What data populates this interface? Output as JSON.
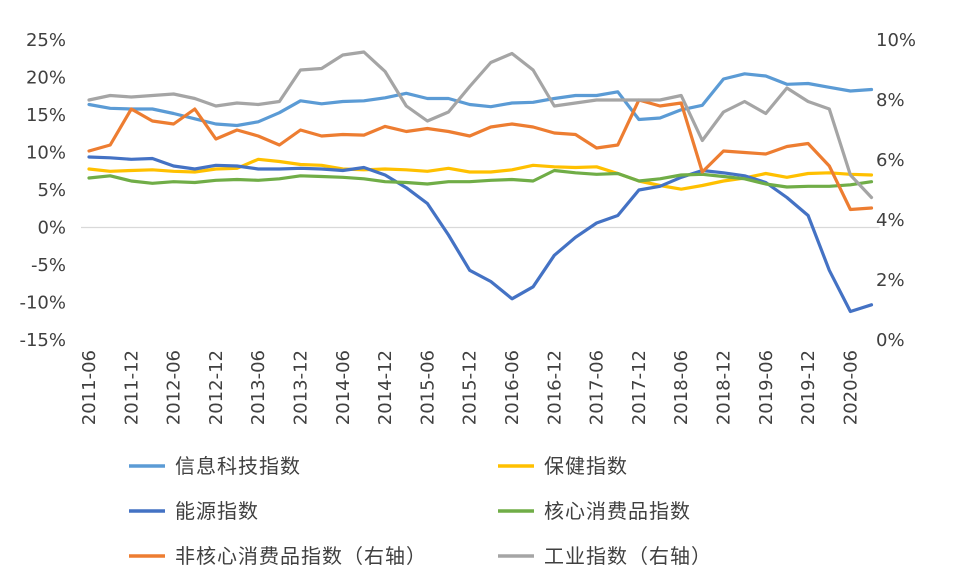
{
  "chart_data": {
    "type": "line",
    "x": [
      "2011-06",
      "2011-09",
      "2011-12",
      "2012-03",
      "2012-06",
      "2012-09",
      "2012-12",
      "2013-03",
      "2013-06",
      "2013-09",
      "2013-12",
      "2014-03",
      "2014-06",
      "2014-09",
      "2014-12",
      "2015-03",
      "2015-06",
      "2015-09",
      "2015-12",
      "2016-03",
      "2016-06",
      "2016-09",
      "2016-12",
      "2017-03",
      "2017-06",
      "2017-09",
      "2017-12",
      "2018-03",
      "2018-06",
      "2018-09",
      "2018-12",
      "2019-03",
      "2019-06",
      "2019-09",
      "2019-12",
      "2020-03",
      "2020-06",
      "2020-09"
    ],
    "xtick_labels": [
      "2011-06",
      "2011-12",
      "2012-06",
      "2012-12",
      "2013-06",
      "2013-12",
      "2014-06",
      "2014-12",
      "2015-06",
      "2015-12",
      "2016-06",
      "2016-12",
      "2017-06",
      "2017-12",
      "2018-06",
      "2018-12",
      "2019-06",
      "2019-12",
      "2020-06"
    ],
    "y_left": {
      "min": -15,
      "max": 25,
      "step": 5,
      "unit": "%"
    },
    "y_right": {
      "min": 0,
      "max": 10,
      "step": 2,
      "unit": "%"
    },
    "legend_position": "bottom",
    "series": [
      {
        "name": "信息科技指数",
        "axis": "left",
        "color": "#5B9BD5",
        "values": [
          16.4,
          15.9,
          15.8,
          15.8,
          15.2,
          14.5,
          13.8,
          13.6,
          14.1,
          15.3,
          16.9,
          16.5,
          16.8,
          16.9,
          17.3,
          17.9,
          17.2,
          17.2,
          16.4,
          16.1,
          16.6,
          16.7,
          17.2,
          17.6,
          17.6,
          18.1,
          14.4,
          14.6,
          15.7,
          16.3,
          19.8,
          20.5,
          20.2,
          19.1,
          19.2,
          18.7,
          18.2,
          18.4
        ]
      },
      {
        "name": "保健指数",
        "axis": "left",
        "color": "#FFC000",
        "values": [
          7.8,
          7.5,
          7.6,
          7.7,
          7.5,
          7.4,
          7.8,
          7.9,
          9.1,
          8.8,
          8.4,
          8.3,
          7.8,
          7.7,
          7.8,
          7.7,
          7.5,
          7.9,
          7.4,
          7.4,
          7.7,
          8.3,
          8.1,
          8.0,
          8.1,
          7.2,
          6.2,
          5.6,
          5.1,
          5.6,
          6.2,
          6.6,
          7.2,
          6.7,
          7.2,
          7.3,
          7.1,
          7.0
        ]
      },
      {
        "name": "能源指数",
        "axis": "left",
        "color": "#4472C4",
        "values": [
          9.4,
          9.3,
          9.1,
          9.2,
          8.2,
          7.8,
          8.3,
          8.2,
          7.8,
          7.8,
          7.9,
          7.8,
          7.6,
          8.0,
          7.0,
          5.3,
          3.2,
          -1.0,
          -5.7,
          -7.2,
          -9.5,
          -7.9,
          -3.7,
          -1.3,
          0.6,
          1.6,
          5.0,
          5.5,
          6.7,
          7.6,
          7.3,
          6.9,
          6.0,
          4.0,
          1.6,
          -5.7,
          -11.2,
          -10.3
        ]
      },
      {
        "name": "核心消费品指数",
        "axis": "left",
        "color": "#70AD47",
        "values": [
          6.6,
          6.9,
          6.2,
          5.9,
          6.1,
          6.0,
          6.3,
          6.4,
          6.3,
          6.5,
          6.9,
          6.8,
          6.7,
          6.5,
          6.1,
          6.0,
          5.8,
          6.1,
          6.1,
          6.3,
          6.4,
          6.2,
          7.6,
          7.3,
          7.1,
          7.2,
          6.2,
          6.5,
          7.0,
          7.1,
          6.8,
          6.5,
          5.8,
          5.4,
          5.5,
          5.5,
          5.7,
          6.1
        ]
      },
      {
        "name": "非核心消费品指数（右轴）",
        "axis": "right",
        "color": "#ED7D31",
        "values": [
          6.3,
          6.5,
          7.7,
          7.3,
          7.2,
          7.7,
          6.7,
          7.0,
          6.8,
          6.5,
          7.0,
          6.8,
          6.85,
          6.83,
          7.12,
          6.95,
          7.05,
          6.95,
          6.8,
          7.1,
          7.2,
          7.1,
          6.9,
          6.85,
          6.4,
          6.5,
          8.0,
          7.8,
          7.9,
          5.6,
          6.3,
          6.25,
          6.2,
          6.45,
          6.55,
          5.8,
          4.35,
          4.4
        ]
      },
      {
        "name": "工业指数（右轴）",
        "axis": "right",
        "color": "#A5A5A5",
        "values": [
          8.0,
          8.15,
          8.1,
          8.15,
          8.2,
          8.05,
          7.8,
          7.9,
          7.85,
          7.95,
          9.0,
          9.05,
          9.5,
          9.6,
          8.95,
          7.8,
          7.3,
          7.6,
          8.45,
          9.25,
          9.55,
          9.0,
          7.8,
          7.9,
          8.0,
          8.0,
          8.0,
          8.0,
          8.15,
          6.65,
          7.6,
          7.95,
          7.55,
          8.4,
          7.95,
          7.7,
          5.5,
          4.75
        ]
      }
    ]
  }
}
